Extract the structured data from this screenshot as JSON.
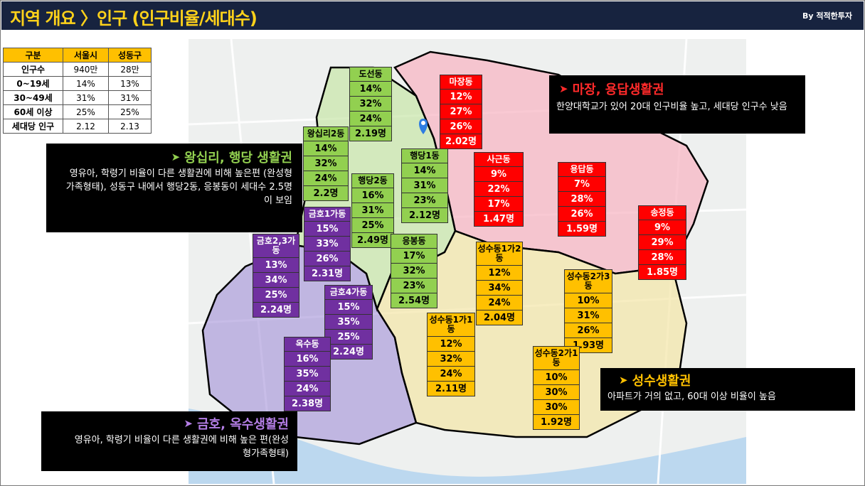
{
  "header": {
    "title": "지역 개요 〉인구 (인구비율/세대수)",
    "byline": "By 적적한투자"
  },
  "summary_table": {
    "headers": [
      "구분",
      "서울시",
      "성동구"
    ],
    "rows": [
      [
        "인구수",
        "940만",
        "28만"
      ],
      [
        "0~19세",
        "14%",
        "13%"
      ],
      [
        "30~49세",
        "31%",
        "31%"
      ],
      [
        "60세 이상",
        "25%",
        "25%"
      ],
      [
        "세대당 인구",
        "2.12",
        "2.13"
      ]
    ]
  },
  "districts": [
    {
      "name": "도선동",
      "values": [
        "14%",
        "32%",
        "24%",
        "2.19명"
      ],
      "color": "#92d050"
    },
    {
      "name": "왕십리2동",
      "values": [
        "14%",
        "32%",
        "24%",
        "2.2명"
      ],
      "color": "#92d050"
    },
    {
      "name": "행당2동",
      "values": [
        "16%",
        "31%",
        "25%",
        "2.49명"
      ],
      "color": "#92d050"
    },
    {
      "name": "행당1동",
      "values": [
        "14%",
        "31%",
        "23%",
        "2.12명"
      ],
      "color": "#92d050"
    },
    {
      "name": "응봉동",
      "values": [
        "17%",
        "32%",
        "23%",
        "2.54명"
      ],
      "color": "#92d050"
    },
    {
      "name": "마장동",
      "values": [
        "12%",
        "27%",
        "26%",
        "2.02명"
      ],
      "color": "#ff0000"
    },
    {
      "name": "사근동",
      "values": [
        "9%",
        "22%",
        "17%",
        "1.47명"
      ],
      "color": "#ff0000"
    },
    {
      "name": "용답동",
      "values": [
        "7%",
        "28%",
        "26%",
        "1.59명"
      ],
      "color": "#ff0000"
    },
    {
      "name": "송정동",
      "values": [
        "9%",
        "29%",
        "28%",
        "1.85명"
      ],
      "color": "#ff0000"
    },
    {
      "name": "금호1가동",
      "values": [
        "15%",
        "33%",
        "26%",
        "2.31명"
      ],
      "color": "#7030a0"
    },
    {
      "name": "금호2,3가동",
      "values": [
        "13%",
        "34%",
        "25%",
        "2.24명"
      ],
      "color": "#7030a0"
    },
    {
      "name": "금호4가동",
      "values": [
        "15%",
        "35%",
        "25%",
        "2.24명"
      ],
      "color": "#7030a0"
    },
    {
      "name": "옥수동",
      "values": [
        "16%",
        "35%",
        "24%",
        "2.38명"
      ],
      "color": "#7030a0"
    },
    {
      "name": "성수동1가2동",
      "values": [
        "12%",
        "34%",
        "24%",
        "2.04명"
      ],
      "color": "#ffc000"
    },
    {
      "name": "성수동2가3동",
      "values": [
        "10%",
        "31%",
        "26%",
        "1.93명"
      ],
      "color": "#ffc000"
    },
    {
      "name": "성수동1가1동",
      "values": [
        "12%",
        "32%",
        "24%",
        "2.11명"
      ],
      "color": "#ffc000"
    },
    {
      "name": "성수동2가1동",
      "values": [
        "10%",
        "30%",
        "30%",
        "1.92명"
      ],
      "color": "#ffc000"
    }
  ],
  "callouts": {
    "majang": {
      "title": "마장, 용답생활권",
      "body": "한양대학교가 있어 20대 인구비율 높고, 세대당 인구수 낮음",
      "title_color": "#ff2a2a"
    },
    "wangsimni": {
      "title": "왕십리, 행당 생활권",
      "body": "영유아, 학령기 비율이 다른 생활권에 비해 높은편 (완성형 가족형태), 성동구 내에서 행당2동, 응봉동이 세대수 2.5명이 보임",
      "title_color": "#92d050"
    },
    "seongsu": {
      "title": "성수생활권",
      "body": "아파트가 거의 없고, 60대 이상 비율이 높음",
      "title_color": "#ffc000"
    },
    "geumho": {
      "title": "금호, 옥수생활권",
      "body": "영유아, 학령기 비율이 다른 생활권에 비해 높은 편(완성형가족형태)",
      "title_color": "#b47ee6"
    }
  },
  "icons": {
    "callout_arrow": "triangle-right-icon",
    "map_pin": "map-pin-icon"
  }
}
